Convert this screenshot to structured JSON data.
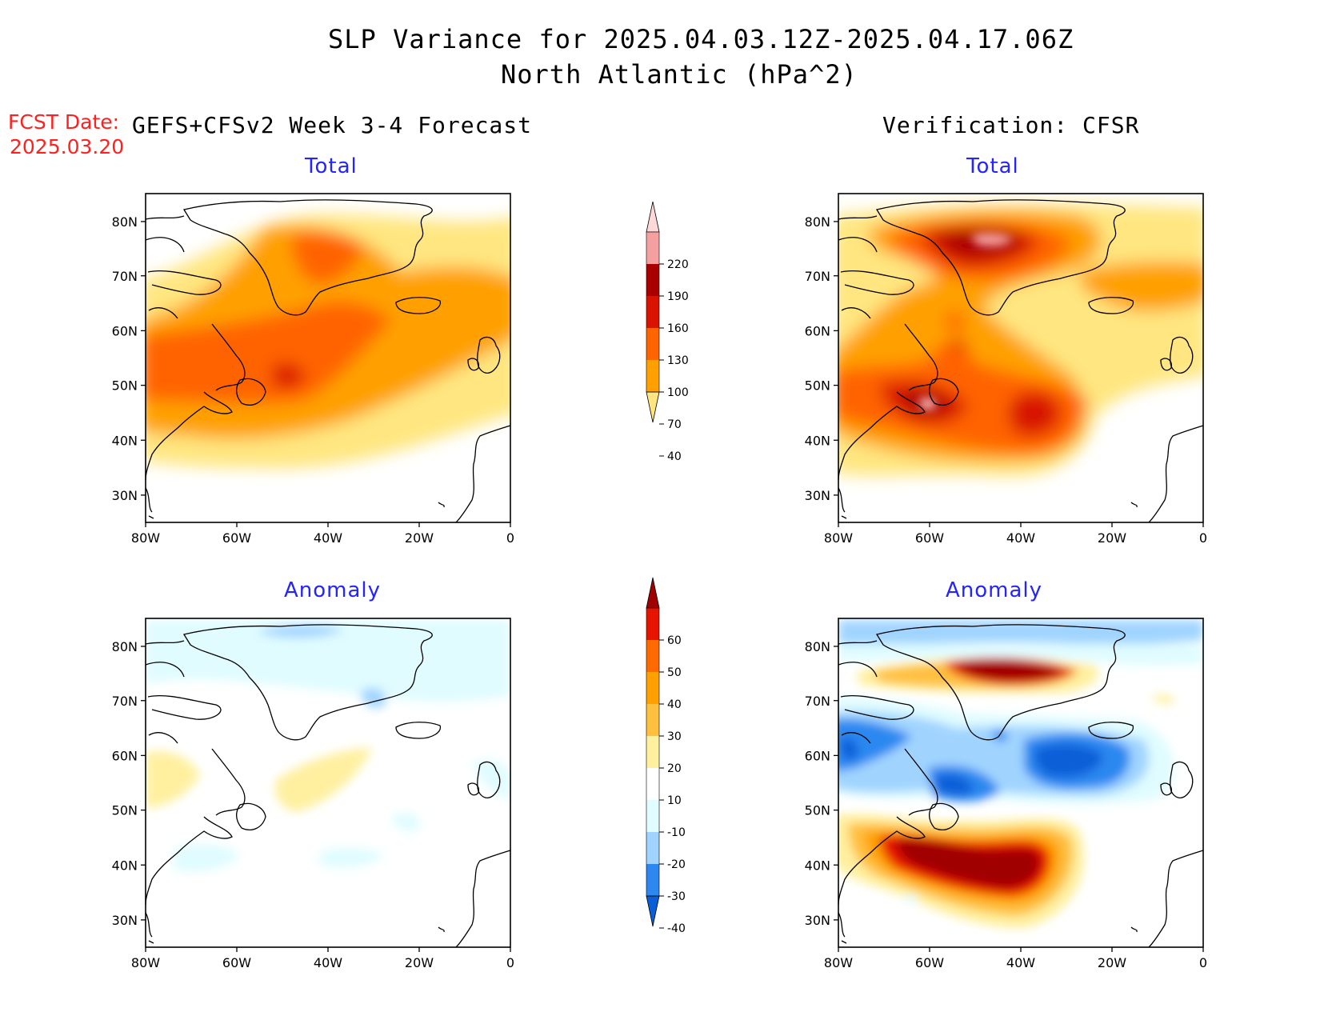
{
  "header": {
    "title_line1": "SLP Variance for 2025.04.03.12Z-2025.04.17.06Z",
    "title_line2": "North Atlantic (hPa^2)",
    "fcst_label": "FCST Date:",
    "fcst_date": "2025.03.20",
    "left_column_title": "GEFS+CFSv2 Week 3-4 Forecast",
    "right_column_title": "Verification: CFSR"
  },
  "panels": {
    "top_left_title": "Total",
    "top_right_title": "Total",
    "bottom_left_title": "Anomaly",
    "bottom_right_title": "Anomaly"
  },
  "axes": {
    "lat_labels": [
      "80N",
      "70N",
      "60N",
      "50N",
      "40N",
      "30N"
    ],
    "lon_labels": [
      "80W",
      "60W",
      "40W",
      "20W",
      "0"
    ]
  },
  "colorbar_total": {
    "levels": [
      "220",
      "190",
      "160",
      "130",
      "100",
      "70",
      "40"
    ],
    "colors": [
      "#ffd8d8",
      "#f4a0a0",
      "#a80000",
      "#d81400",
      "#ff6400",
      "#ffa000",
      "#ffe680"
    ]
  },
  "colorbar_anomaly": {
    "levels": [
      "60",
      "50",
      "40",
      "30",
      "20",
      "10",
      "-10",
      "-20",
      "-30",
      "-40"
    ],
    "colors": [
      "#a00000",
      "#e61400",
      "#ff6a00",
      "#ffa000",
      "#ffc040",
      "#fff0a0",
      "#ffffff",
      "#e0fcff",
      "#a0d4ff",
      "#2c88f0",
      "#0a5ed8"
    ]
  }
}
